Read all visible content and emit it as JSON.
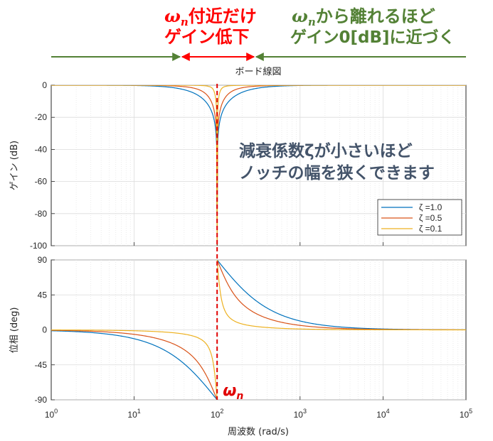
{
  "chart_data": {
    "type": "line",
    "title": "ボード線図",
    "x_scale": "log",
    "xlim": [
      1,
      100000
    ],
    "x_tick_labels": [
      {
        "base": "10",
        "exp": "0"
      },
      {
        "base": "10",
        "exp": "1"
      },
      {
        "base": "10",
        "exp": "2"
      },
      {
        "base": "10",
        "exp": "3"
      },
      {
        "base": "10",
        "exp": "4"
      },
      {
        "base": "10",
        "exp": "5"
      }
    ],
    "xlabel": "周波数 (rad/s)",
    "wn": 100,
    "wn_label": {
      "base": "ω",
      "sub": "n"
    },
    "grid": true,
    "panels": [
      {
        "name": "gain",
        "ylabel": "ゲイン (dB)",
        "ylim": [
          -100,
          0
        ],
        "yticks": [
          "0",
          "-20",
          "-40",
          "-60",
          "-80",
          "-100"
        ],
        "legend_position": "lower-right"
      },
      {
        "name": "phase",
        "ylabel": "位相 (deg)",
        "ylim": [
          -90,
          90
        ],
        "yticks": [
          "90",
          "45",
          "0",
          "-45",
          "-90"
        ]
      }
    ],
    "series": [
      {
        "name": "ζ =1.0",
        "zeta": 1.0,
        "color": "#0072BD",
        "gain_db": {
          "x": [
            1,
            10,
            30,
            50,
            70,
            90,
            95,
            99,
            100,
            101,
            105,
            110,
            130,
            150,
            200,
            300,
            1000,
            10000,
            100000
          ],
          "y": [
            0.0,
            -0.04,
            -0.36,
            -0.97,
            -1.99,
            -4.55,
            -6.61,
            -13.62,
            -40.0,
            -13.56,
            -7.07,
            -5.43,
            -3.1,
            -2.09,
            -1.01,
            -0.41,
            -0.04,
            0.0,
            0.0
          ]
        },
        "phase_deg": {
          "x": [
            1,
            10,
            30,
            50,
            70,
            90,
            99,
            100,
            101,
            110,
            130,
            150,
            200,
            300,
            1000,
            10000,
            100000
          ],
          "y": [
            -1.1,
            -11.4,
            -31.3,
            -53.1,
            -70.4,
            -83.9,
            -89.4,
            -90,
            89.4,
            84.3,
            75.2,
            67.4,
            53.1,
            36.9,
            11.4,
            1.1,
            0.1
          ]
        }
      },
      {
        "name": "ζ =0.5",
        "zeta": 0.5,
        "color": "#D95319",
        "gain_db": {
          "x": [
            1,
            10,
            30,
            50,
            70,
            90,
            95,
            99,
            100,
            101,
            105,
            110,
            130,
            150,
            200,
            300,
            1000,
            10000,
            100000
          ],
          "y": [
            0.0,
            -0.01,
            -0.09,
            -0.26,
            -0.58,
            -1.88,
            -2.93,
            -8.87,
            -40.0,
            -8.8,
            -3.26,
            -2.07,
            -0.84,
            -0.55,
            -0.26,
            -0.1,
            -0.01,
            0.0,
            0.0
          ]
        },
        "phase_deg": {
          "x": [
            1,
            10,
            30,
            50,
            70,
            90,
            99,
            100,
            101,
            110,
            130,
            150,
            200,
            300,
            1000,
            10000,
            100000
          ],
          "y": [
            -0.6,
            -5.8,
            -18.3,
            -33.7,
            -53.9,
            -78.3,
            -88.8,
            -90,
            88.8,
            78.3,
            60.5,
            50.2,
            33.7,
            20.6,
            5.8,
            0.6,
            0.1
          ]
        }
      },
      {
        "name": "ζ =0.1",
        "zeta": 0.1,
        "color": "#EDB120",
        "gain_db": {
          "x": [
            1,
            10,
            30,
            50,
            70,
            90,
            95,
            99,
            100,
            101,
            105,
            110,
            130,
            150,
            200,
            300,
            1000,
            10000,
            100000
          ],
          "y": [
            0.0,
            0.0,
            0.0,
            -0.01,
            -0.04,
            -0.18,
            -0.47,
            -1.0,
            -40.0,
            -0.99,
            -0.1,
            -0.09,
            -0.04,
            -0.02,
            -0.01,
            0.0,
            0.0,
            0.0,
            0.0
          ]
        },
        "phase_deg": {
          "x": [
            1,
            10,
            30,
            50,
            70,
            90,
            99,
            100,
            101,
            110,
            130,
            150,
            200,
            300,
            1000,
            10000,
            100000
          ],
          "y": [
            -0.1,
            -1.2,
            -3.8,
            -7.6,
            -15.4,
            -43.4,
            -84.3,
            -90,
            84.3,
            43.6,
            20.2,
            13.2,
            7.6,
            4.3,
            1.2,
            0.1,
            0.0
          ]
        }
      }
    ]
  },
  "annotations": {
    "near_wn": {
      "omega": "ω",
      "sub": "n",
      "line1_rest": "付近だけ",
      "line2": "ゲイン低下",
      "color": "#ff0000"
    },
    "away_wn": {
      "omega": "ω",
      "sub": "n",
      "line1_rest": "から離れるほど",
      "line2": "ゲイン0[dB]に近づく",
      "color": "#538135"
    },
    "zeta_note": {
      "line1": "減衰係数ζが小さいほど",
      "line2": "ノッチの幅を狭くできます",
      "color": "#44546A"
    }
  }
}
